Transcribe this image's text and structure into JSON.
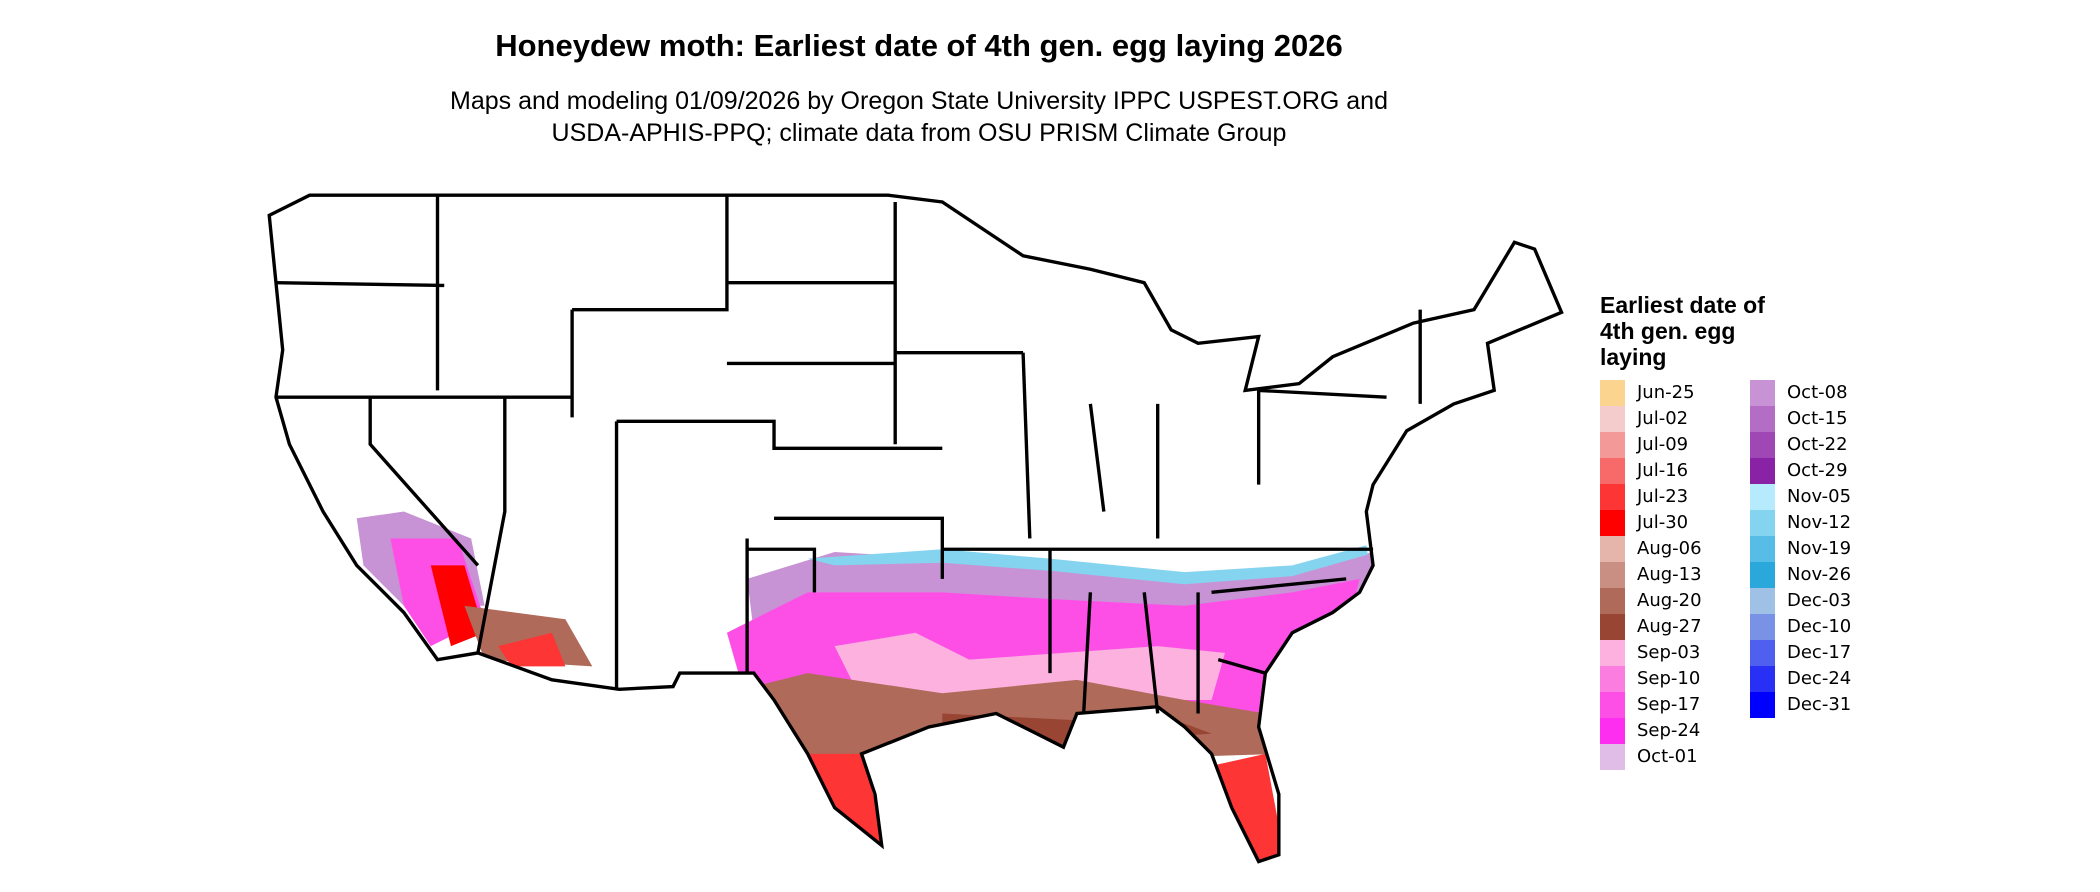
{
  "title": "Honeydew moth: Earliest date of 4th gen. egg laying 2026",
  "subtitle_lines": [
    "Maps and modeling 01/09/2026 by Oregon State University IPPC USPEST.ORG and",
    "USDA-APHIS-PPQ; climate data from OSU PRISM Climate Group"
  ],
  "legend": {
    "title": "Earliest date of 4th gen. egg laying",
    "items": [
      {
        "label": "Jun-25",
        "color": "#fbd490"
      },
      {
        "label": "Jul-02",
        "color": "#f4cccc"
      },
      {
        "label": "Jul-09",
        "color": "#f39a98"
      },
      {
        "label": "Jul-16",
        "color": "#f86a6a"
      },
      {
        "label": "Jul-23",
        "color": "#fd3535"
      },
      {
        "label": "Jul-30",
        "color": "#ff0000"
      },
      {
        "label": "Aug-06",
        "color": "#e5b5ab"
      },
      {
        "label": "Aug-13",
        "color": "#c98f82"
      },
      {
        "label": "Aug-20",
        "color": "#b06a5a"
      },
      {
        "label": "Aug-27",
        "color": "#984534"
      },
      {
        "label": "Sep-03",
        "color": "#fcb1de"
      },
      {
        "label": "Sep-10",
        "color": "#fc7de0"
      },
      {
        "label": "Sep-17",
        "color": "#fd4fe6"
      },
      {
        "label": "Sep-24",
        "color": "#fd2ef0"
      },
      {
        "label": "Oct-01",
        "color": "#dfbde6"
      },
      {
        "label": "Oct-08",
        "color": "#c893d5"
      },
      {
        "label": "Oct-15",
        "color": "#b46dc4"
      },
      {
        "label": "Oct-22",
        "color": "#9f47b5"
      },
      {
        "label": "Oct-29",
        "color": "#8a22a6"
      },
      {
        "label": "Nov-05",
        "color": "#b5ebfc"
      },
      {
        "label": "Nov-12",
        "color": "#84d3ef"
      },
      {
        "label": "Nov-19",
        "color": "#58bde6"
      },
      {
        "label": "Nov-26",
        "color": "#2aa7db"
      },
      {
        "label": "Dec-03",
        "color": "#9fc1e6"
      },
      {
        "label": "Dec-10",
        "color": "#7a92e6"
      },
      {
        "label": "Dec-17",
        "color": "#4f60ef"
      },
      {
        "label": "Dec-24",
        "color": "#2830f6"
      },
      {
        "label": "Dec-31",
        "color": "#0000ff"
      }
    ]
  }
}
